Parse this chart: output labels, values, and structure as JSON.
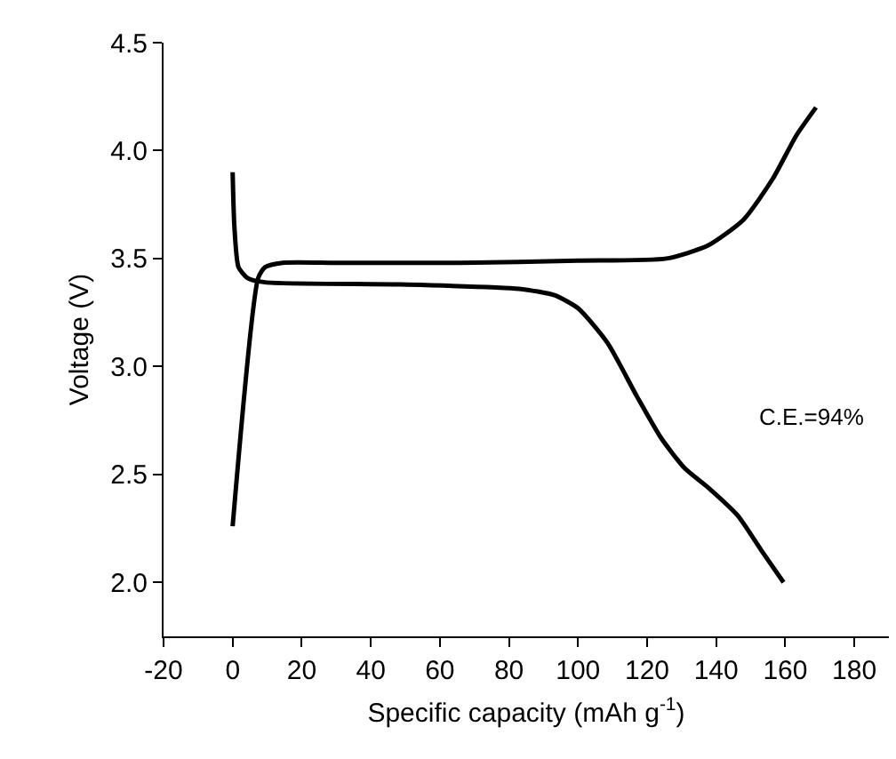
{
  "chart_data": {
    "type": "line",
    "xlabel": "Specific capacity (mAh g$^{-1}$)",
    "ylabel": "Voltage (V)",
    "xlim": [
      -20,
      190
    ],
    "xticks": [
      -20,
      0,
      20,
      40,
      60,
      80,
      100,
      120,
      140,
      160,
      180
    ],
    "ylim": [
      1.75,
      4.5
    ],
    "yticks": [
      {
        "value": 2,
        "label": "2.0"
      },
      2.5,
      {
        "value": 3,
        "label": "3.0"
      },
      3.5,
      {
        "value": 4,
        "label": "4.0"
      },
      4.5
    ],
    "marker": "none",
    "line_style": "solid",
    "series": [
      {
        "color": "#000000",
        "x": [
          0,
          7.4,
          9.4,
          14.5,
          30,
          65.8,
          100,
          125.6,
          137.6,
          147.9,
          156.4,
          163.2,
          168.9
        ],
        "values": [
          2.26,
          3.41,
          3.46,
          3.48,
          3.48,
          3.48,
          3.49,
          3.5,
          3.56,
          3.68,
          3.87,
          4.07,
          4.2
        ]
      },
      {
        "color": "#000000",
        "x": [
          0,
          0.5,
          1.7,
          4.3,
          9.4,
          48.7,
          82.9,
          93.2,
          100,
          108.5,
          117.1,
          124,
          130.8,
          137.6,
          146.2,
          153,
          159.5
        ],
        "values": [
          3.9,
          3.65,
          3.46,
          3.41,
          3.39,
          3.38,
          3.36,
          3.33,
          3.27,
          3.11,
          2.86,
          2.67,
          2.53,
          2.44,
          2.31,
          2.15,
          2.0
        ]
      }
    ],
    "annotations": [
      "C.E.=94%"
    ]
  }
}
